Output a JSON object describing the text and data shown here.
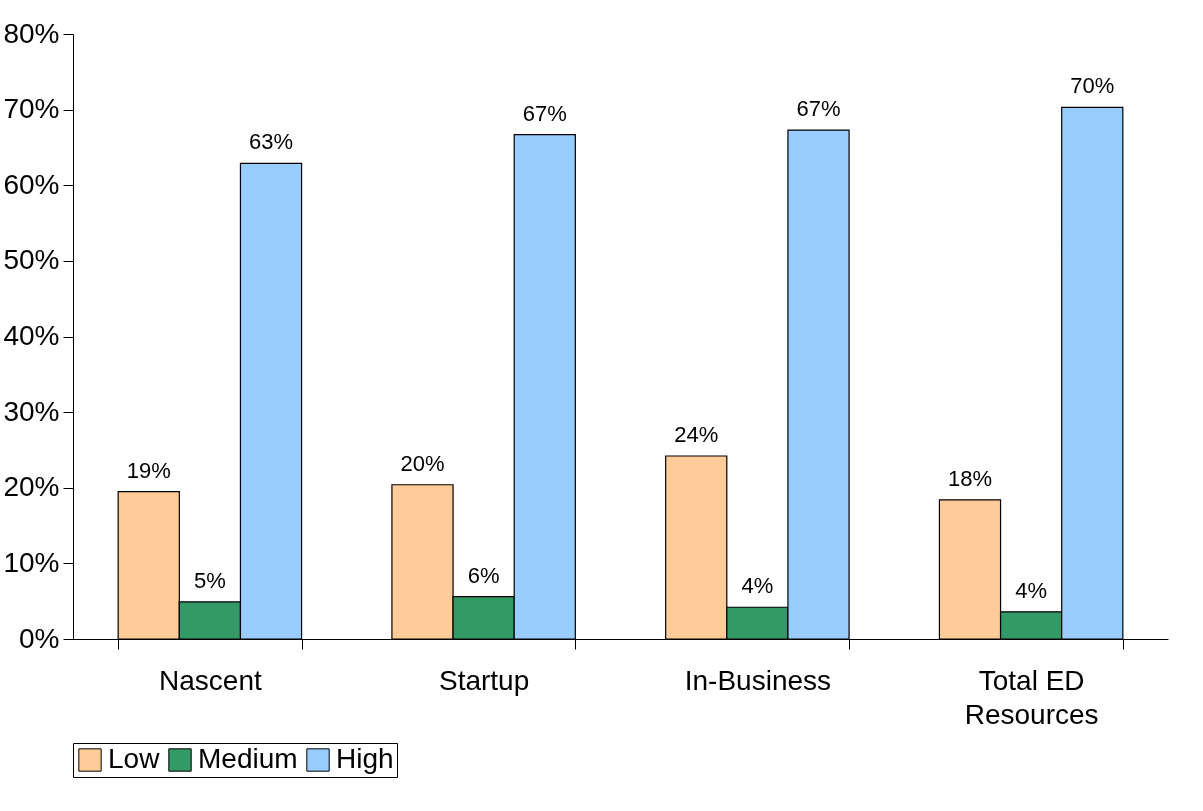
{
  "chart_data": {
    "type": "bar",
    "categories": [
      "Nascent",
      "Startup",
      "In-Business",
      "Total ED Resources"
    ],
    "series": [
      {
        "name": "Low",
        "color": "#ffcc99",
        "values": [
          19.5,
          20.4,
          24.2,
          18.4
        ],
        "value_labels": [
          "19%",
          "20%",
          "24%",
          "18%"
        ]
      },
      {
        "name": "Medium",
        "color": "#339966",
        "values": [
          4.9,
          5.6,
          4.2,
          3.6
        ],
        "value_labels": [
          "5%",
          "6%",
          "4%",
          "4%"
        ]
      },
      {
        "name": "High",
        "color": "#99ccff",
        "values": [
          62.9,
          66.7,
          67.3,
          70.3
        ],
        "value_labels": [
          "63%",
          "67%",
          "67%",
          "70%"
        ]
      }
    ],
    "ylim": [
      0,
      80
    ],
    "yticks": [
      {
        "value": 0,
        "label": "0%"
      },
      {
        "value": 10,
        "label": "10%"
      },
      {
        "value": 20,
        "label": "20%"
      },
      {
        "value": 30,
        "label": "30%"
      },
      {
        "value": 40,
        "label": "40%"
      },
      {
        "value": 50,
        "label": "50%"
      },
      {
        "value": 60,
        "label": "60%"
      },
      {
        "value": 70,
        "label": "70%"
      },
      {
        "value": 80,
        "label": "80%"
      }
    ],
    "grid": false,
    "legend": "bottom"
  }
}
